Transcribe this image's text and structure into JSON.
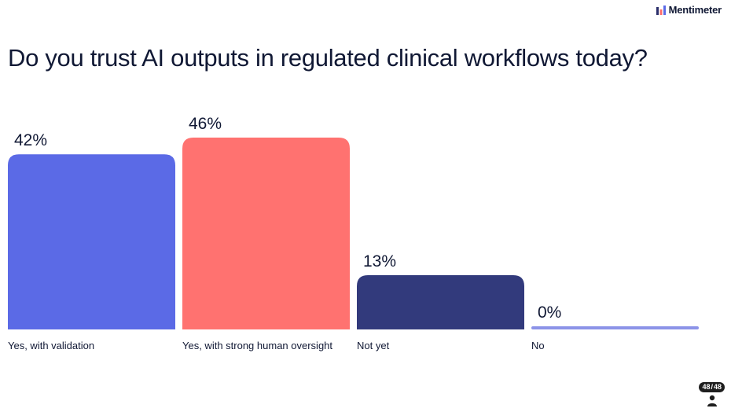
{
  "brand": {
    "name": "Mentimeter"
  },
  "question": "Do you trust AI outputs in regulated clinical workflows today?",
  "chart_data": {
    "type": "bar",
    "categories": [
      "Yes, with validation",
      "Yes, with strong human oversight",
      "Not yet",
      "No"
    ],
    "values": [
      42,
      46,
      13,
      0
    ],
    "value_labels": [
      "42%",
      "46%",
      "13%",
      "0%"
    ],
    "colors": [
      "#5b6ae6",
      "#ff7270",
      "#323a7c",
      "#8c93e8"
    ],
    "ylim": [
      0,
      46
    ],
    "grid": false,
    "legend": "none"
  },
  "footer": {
    "current_slide": "48",
    "total_slides": "48",
    "separator": "/"
  },
  "icons": {
    "brand": "mentimeter-logo-icon",
    "participants": "person-icon"
  }
}
